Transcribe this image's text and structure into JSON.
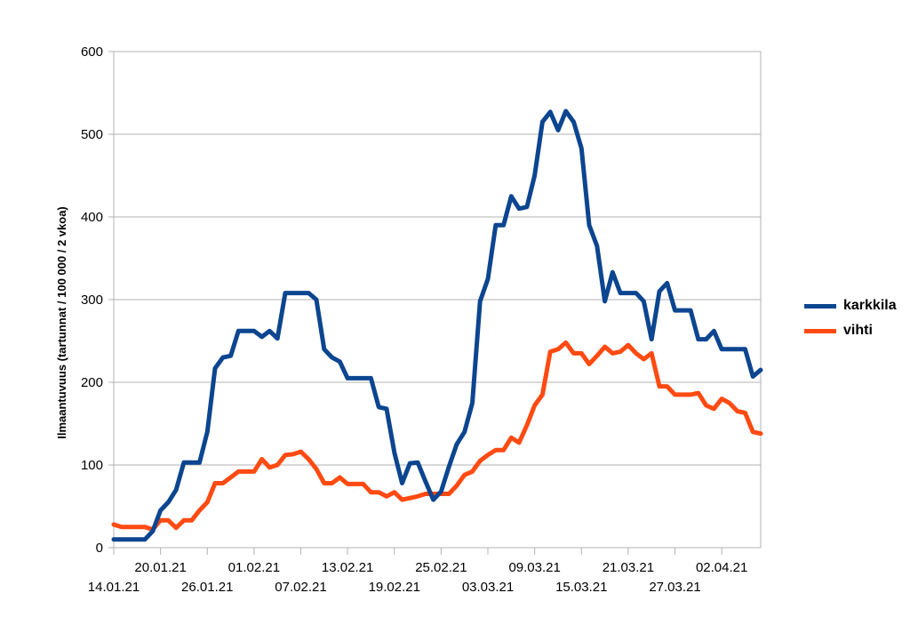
{
  "chart_data": {
    "type": "line",
    "title": "",
    "xlabel": "",
    "ylabel": "Ilmaantuvuus (tartunnat / 100 000 / 2 vkoa)",
    "ylim": [
      0,
      600
    ],
    "yticks": [
      0,
      100,
      200,
      300,
      400,
      500,
      600
    ],
    "grid": "horizontal",
    "legend_position": "right",
    "x_start": "14.01.21",
    "x_end": "07.04.21",
    "x_tick_labels_upper": [
      "20.01.21",
      "01.02.21",
      "13.02.21",
      "25.02.21",
      "09.03.21",
      "21.03.21",
      "02.04.21"
    ],
    "x_tick_labels_lower": [
      "14.01.21",
      "26.01.21",
      "07.02.21",
      "19.02.21",
      "03.03.21",
      "15.03.21",
      "27.03.21"
    ],
    "series": [
      {
        "name": "karkkila",
        "color": "#0c4590",
        "points": [
          [
            "14.01.21",
            10
          ],
          [
            "16.01.21",
            10
          ],
          [
            "18.01.21",
            10
          ],
          [
            "19.01.21",
            20
          ],
          [
            "20.01.21",
            45
          ],
          [
            "21.01.21",
            55
          ],
          [
            "22.01.21",
            70
          ],
          [
            "23.01.21",
            103
          ],
          [
            "25.01.21",
            103
          ],
          [
            "26.01.21",
            140
          ],
          [
            "27.01.21",
            217
          ],
          [
            "28.01.21",
            230
          ],
          [
            "29.01.21",
            232
          ],
          [
            "30.01.21",
            262
          ],
          [
            "01.02.21",
            262
          ],
          [
            "02.02.21",
            255
          ],
          [
            "03.02.21",
            262
          ],
          [
            "04.02.21",
            253
          ],
          [
            "05.02.21",
            308
          ],
          [
            "08.02.21",
            308
          ],
          [
            "09.02.21",
            300
          ],
          [
            "10.02.21",
            240
          ],
          [
            "11.02.21",
            230
          ],
          [
            "12.02.21",
            225
          ],
          [
            "13.02.21",
            205
          ],
          [
            "16.02.21",
            205
          ],
          [
            "17.02.21",
            170
          ],
          [
            "18.02.21",
            168
          ],
          [
            "19.02.21",
            115
          ],
          [
            "20.02.21",
            78
          ],
          [
            "21.02.21",
            102
          ],
          [
            "22.02.21",
            103
          ],
          [
            "23.02.21",
            80
          ],
          [
            "24.02.21",
            58
          ],
          [
            "25.02.21",
            68
          ],
          [
            "26.02.21",
            98
          ],
          [
            "27.02.21",
            125
          ],
          [
            "28.02.21",
            140
          ],
          [
            "01.03.21",
            175
          ],
          [
            "02.03.21",
            298
          ],
          [
            "03.03.21",
            325
          ],
          [
            "04.03.21",
            390
          ],
          [
            "05.03.21",
            390
          ],
          [
            "06.03.21",
            425
          ],
          [
            "07.03.21",
            410
          ],
          [
            "08.03.21",
            412
          ],
          [
            "09.03.21",
            450
          ],
          [
            "10.03.21",
            515
          ],
          [
            "11.03.21",
            527
          ],
          [
            "12.03.21",
            505
          ],
          [
            "13.03.21",
            528
          ],
          [
            "14.03.21",
            515
          ],
          [
            "15.03.21",
            483
          ],
          [
            "16.03.21",
            390
          ],
          [
            "17.03.21",
            365
          ],
          [
            "18.03.21",
            298
          ],
          [
            "19.03.21",
            333
          ],
          [
            "20.03.21",
            308
          ],
          [
            "22.03.21",
            308
          ],
          [
            "23.03.21",
            298
          ],
          [
            "24.03.21",
            252
          ],
          [
            "25.03.21",
            310
          ],
          [
            "26.03.21",
            320
          ],
          [
            "27.03.21",
            287
          ],
          [
            "29.03.21",
            287
          ],
          [
            "30.03.21",
            252
          ],
          [
            "31.03.21",
            252
          ],
          [
            "01.04.21",
            262
          ],
          [
            "02.04.21",
            240
          ],
          [
            "05.04.21",
            240
          ],
          [
            "06.04.21",
            207
          ],
          [
            "07.04.21",
            215
          ]
        ]
      },
      {
        "name": "vihti",
        "color": "#ff4a12",
        "points": [
          [
            "14.01.21",
            28
          ],
          [
            "15.01.21",
            25
          ],
          [
            "18.01.21",
            25
          ],
          [
            "19.01.21",
            22
          ],
          [
            "20.01.21",
            33
          ],
          [
            "21.01.21",
            33
          ],
          [
            "22.01.21",
            24
          ],
          [
            "23.01.21",
            33
          ],
          [
            "24.01.21",
            33
          ],
          [
            "25.01.21",
            45
          ],
          [
            "26.01.21",
            55
          ],
          [
            "27.01.21",
            78
          ],
          [
            "28.01.21",
            78
          ],
          [
            "29.01.21",
            85
          ],
          [
            "30.01.21",
            92
          ],
          [
            "01.02.21",
            92
          ],
          [
            "02.02.21",
            107
          ],
          [
            "03.02.21",
            97
          ],
          [
            "04.02.21",
            100
          ],
          [
            "05.02.21",
            112
          ],
          [
            "06.02.21",
            113
          ],
          [
            "07.02.21",
            116
          ],
          [
            "08.02.21",
            107
          ],
          [
            "09.02.21",
            95
          ],
          [
            "10.02.21",
            78
          ],
          [
            "11.02.21",
            78
          ],
          [
            "12.02.21",
            85
          ],
          [
            "13.02.21",
            77
          ],
          [
            "15.02.21",
            77
          ],
          [
            "16.02.21",
            67
          ],
          [
            "17.02.21",
            67
          ],
          [
            "18.02.21",
            62
          ],
          [
            "19.02.21",
            67
          ],
          [
            "20.02.21",
            58
          ],
          [
            "22.02.21",
            62
          ],
          [
            "23.02.21",
            65
          ],
          [
            "26.02.21",
            65
          ],
          [
            "27.02.21",
            75
          ],
          [
            "28.02.21",
            88
          ],
          [
            "01.03.21",
            92
          ],
          [
            "02.03.21",
            105
          ],
          [
            "03.03.21",
            112
          ],
          [
            "04.03.21",
            118
          ],
          [
            "05.03.21",
            118
          ],
          [
            "06.03.21",
            133
          ],
          [
            "07.03.21",
            127
          ],
          [
            "08.03.21",
            148
          ],
          [
            "09.03.21",
            172
          ],
          [
            "10.03.21",
            185
          ],
          [
            "11.03.21",
            237
          ],
          [
            "12.03.21",
            240
          ],
          [
            "13.03.21",
            248
          ],
          [
            "14.03.21",
            235
          ],
          [
            "15.03.21",
            235
          ],
          [
            "16.03.21",
            222
          ],
          [
            "17.03.21",
            232
          ],
          [
            "18.03.21",
            243
          ],
          [
            "19.03.21",
            235
          ],
          [
            "20.03.21",
            237
          ],
          [
            "21.03.21",
            245
          ],
          [
            "22.03.21",
            235
          ],
          [
            "23.03.21",
            228
          ],
          [
            "24.03.21",
            235
          ],
          [
            "25.03.21",
            195
          ],
          [
            "26.03.21",
            195
          ],
          [
            "27.03.21",
            185
          ],
          [
            "28.03.21",
            185
          ],
          [
            "29.03.21",
            185
          ],
          [
            "30.03.21",
            187
          ],
          [
            "31.03.21",
            172
          ],
          [
            "01.04.21",
            168
          ],
          [
            "02.04.21",
            180
          ],
          [
            "03.04.21",
            175
          ],
          [
            "04.04.21",
            165
          ],
          [
            "05.04.21",
            163
          ],
          [
            "06.04.21",
            140
          ],
          [
            "07.04.21",
            138
          ]
        ]
      }
    ]
  }
}
